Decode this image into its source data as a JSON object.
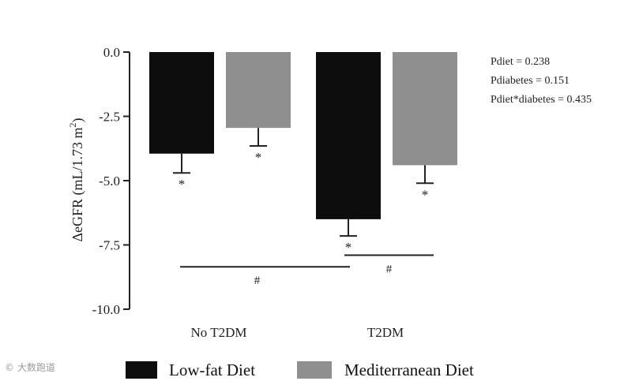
{
  "chart_data": {
    "type": "bar",
    "categories": [
      "No T2DM",
      "T2DM"
    ],
    "series": [
      {
        "name": "Low-fat Diet",
        "color": "#0d0d0d",
        "values": [
          -3.95,
          -6.5
        ],
        "error": [
          0.75,
          0.65
        ]
      },
      {
        "name": "Mediterranean Diet",
        "color": "#8f8f8f",
        "values": [
          -2.95,
          -4.4
        ],
        "error": [
          0.7,
          0.7
        ]
      }
    ],
    "ylabel": "ΔeGFR (mL/1.73 m",
    "ylabel_sup": "2",
    "ylabel_close": ")",
    "ylim": [
      -10,
      0
    ],
    "yticks": [
      "0.0",
      "-2.5",
      "-5.0",
      "-7.5",
      "-10.0"
    ],
    "significance_marker": "*",
    "brackets": [
      {
        "label": "#",
        "from_category": "No T2DM",
        "to_category": "T2DM",
        "level": -8.35
      },
      {
        "label": "#",
        "from_category": "T2DM",
        "to_category": "T2DM",
        "level": -7.9
      }
    ],
    "stats": [
      "Pdiet = 0.238",
      "Pdiabetes = 0.151",
      "Pdiet*diabetes = 0.435"
    ],
    "legend": [
      "Low-fat Diet",
      "Mediterranean Diet"
    ],
    "legend_position": "bottom"
  },
  "watermark": "© 大数跑道"
}
